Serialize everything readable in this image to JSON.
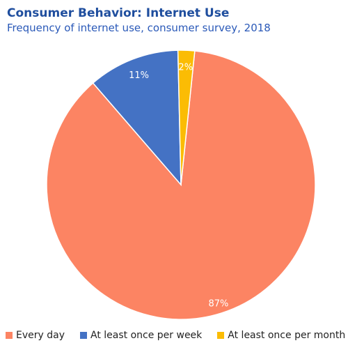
{
  "chart_data": {
    "type": "pie",
    "title": "Consumer Behavior: Internet Use",
    "subtitle": "Frequency of internet use, consumer survey, 2018",
    "slices": [
      {
        "label": "Every day",
        "value": 87,
        "display": "87%",
        "color": "#fc8463"
      },
      {
        "label": "At least once per week",
        "value": 11,
        "display": "11%",
        "color": "#4472c4"
      },
      {
        "label": "At least once per month",
        "value": 2,
        "display": "2%",
        "color": "#fbbc04"
      }
    ],
    "legend": {
      "position": "bottom-left"
    }
  }
}
